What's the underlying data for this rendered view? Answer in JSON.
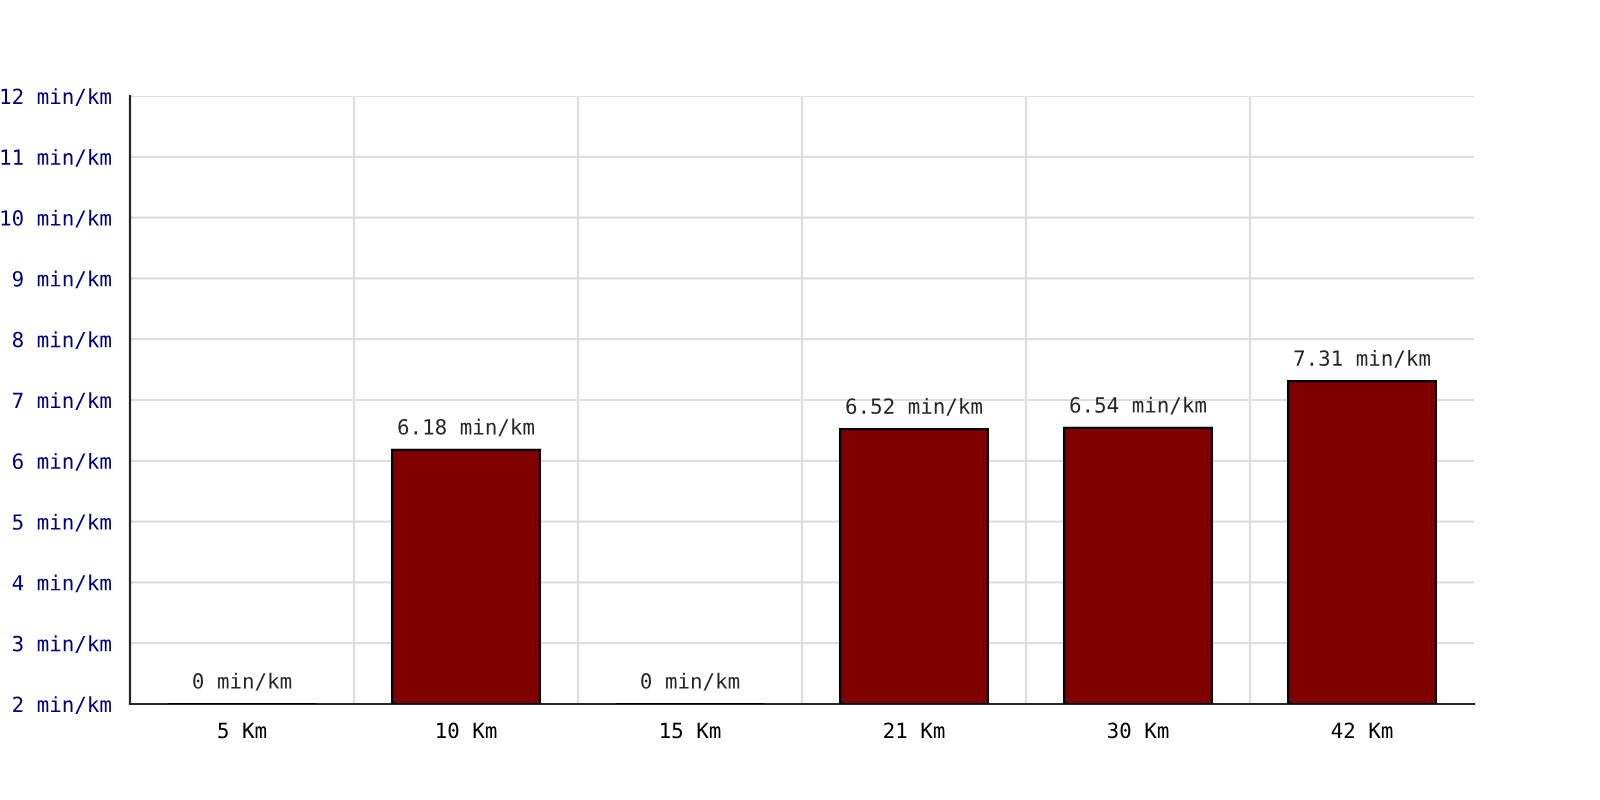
{
  "chart_data": {
    "type": "bar",
    "categories": [
      "5 Km",
      "10 Km",
      "15 Km",
      "21 Km",
      "30 Km",
      "42 Km"
    ],
    "values": [
      null,
      6.18,
      null,
      6.52,
      6.54,
      7.31
    ],
    "value_labels": [
      "0 min/km",
      "6.18 min/km",
      "0 min/km",
      "6.52 min/km",
      "6.54 min/km",
      "7.31 min/km"
    ],
    "color": "#800000",
    "ylim": [
      2,
      12
    ],
    "yticks": [
      {
        "value": 2,
        "label": "2 min/km"
      },
      {
        "value": 3,
        "label": "3 min/km"
      },
      {
        "value": 4,
        "label": "4 min/km"
      },
      {
        "value": 5,
        "label": "5 min/km"
      },
      {
        "value": 6,
        "label": "6 min/km"
      },
      {
        "value": 7,
        "label": "7 min/km"
      },
      {
        "value": 8,
        "label": "8 min/km"
      },
      {
        "value": 9,
        "label": "9 min/km"
      },
      {
        "value": 10,
        "label": "10 min/km"
      },
      {
        "value": 11,
        "label": "11 min/km"
      },
      {
        "value": 12,
        "label": "12 min/km"
      }
    ],
    "grid": true
  }
}
